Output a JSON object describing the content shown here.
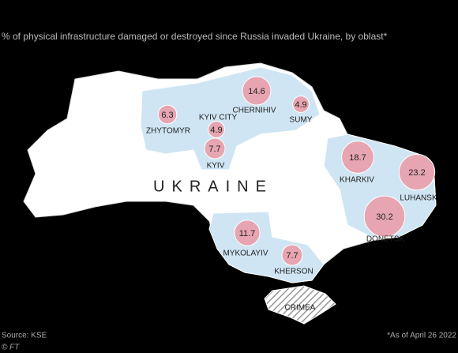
{
  "title": "% of physical infrastructure damaged or destroyed since Russia invaded Ukraine, by oblast*",
  "country_label": "UKRAINE",
  "crimea_label": "CRIMEA",
  "oblasts": [
    {
      "name": "CHERNIHIV",
      "value": 14.6
    },
    {
      "name": "SUMY",
      "value": 4.9
    },
    {
      "name": "ZHYTOMYR",
      "value": 6.3
    },
    {
      "name": "KYIV CITY",
      "value": 4.9
    },
    {
      "name": "KYIV",
      "value": 7.7
    },
    {
      "name": "KHARKIV",
      "value": 18.7
    },
    {
      "name": "LUHANSK",
      "value": 23.2
    },
    {
      "name": "DONETSK",
      "value": 30.2
    },
    {
      "name": "MYKOLAYIV",
      "value": 11.7
    },
    {
      "name": "KHERSON",
      "value": 7.7
    }
  ],
  "source": "Source: KSE",
  "credit": "© FT",
  "footnote": "*As of April 26 2022"
}
